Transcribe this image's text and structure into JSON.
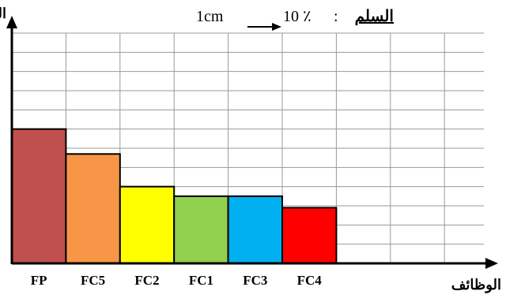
{
  "chart_data": {
    "type": "bar",
    "ylabel": "النسبة",
    "xlabel": "الوظائف",
    "scale": {
      "label": "السلم",
      "colon": ":",
      "value": "10 ٪",
      "unit": "1cm"
    },
    "categories": [
      "FP",
      "FC5",
      "FC2",
      "FC1",
      "FC3",
      "FC4"
    ],
    "values": [
      35,
      28.5,
      20,
      17.5,
      17.5,
      14.5
    ],
    "colors": [
      "#c0504d",
      "#f79646",
      "#ffff00",
      "#92d050",
      "#00b0f0",
      "#ff0000"
    ],
    "grid": true,
    "ylim": [
      0,
      60
    ]
  }
}
